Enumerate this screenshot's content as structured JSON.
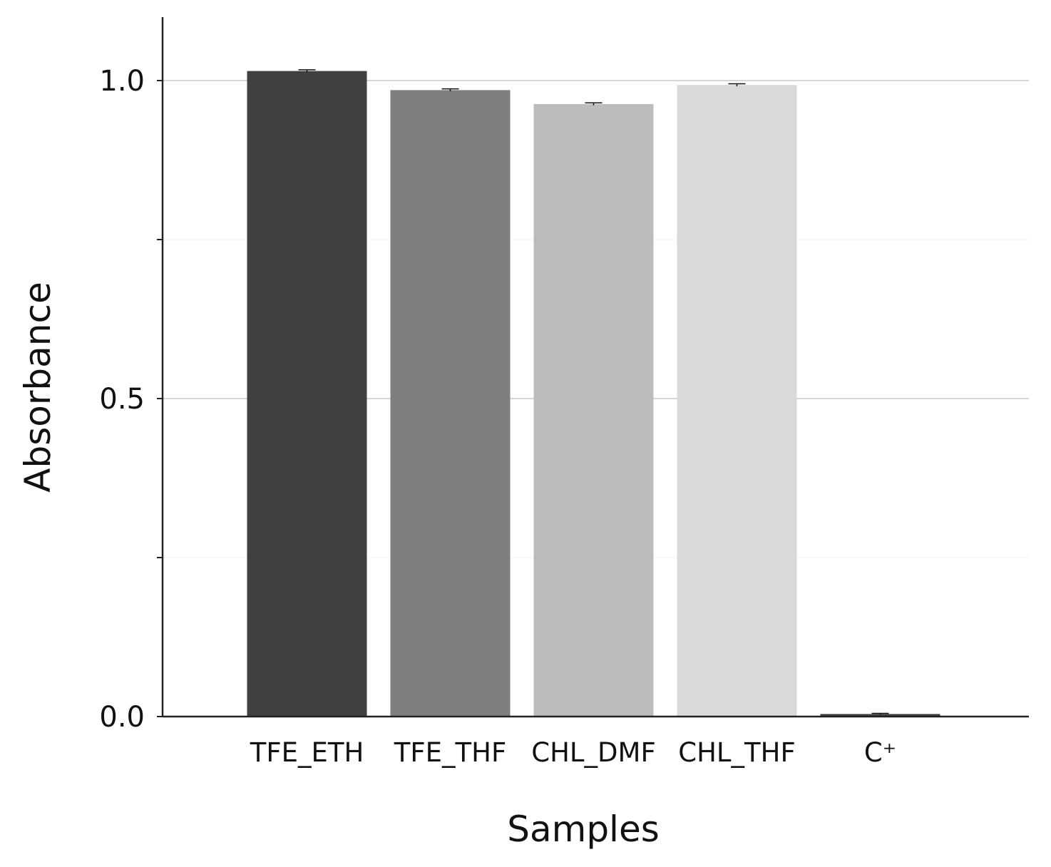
{
  "chart_data": {
    "type": "bar",
    "title": "",
    "xlabel": "Samples",
    "ylabel": "Absorbance",
    "categories": [
      "TFE_ETH",
      "TFE_THF",
      "CHL_DMF",
      "CHL_THF",
      "C⁺"
    ],
    "values": [
      1.015,
      0.985,
      0.963,
      0.993,
      0.004
    ],
    "errors": [
      0.002,
      0.002,
      0.002,
      0.002,
      0.001
    ],
    "colors": [
      "#404040",
      "#7f7f7f",
      "#bcbcbc",
      "#d9d9d9",
      "#404040"
    ],
    "ylim": [
      0,
      1.1
    ],
    "yticks": [
      0.0,
      0.5,
      1.0
    ],
    "ytick_labels": [
      "0.0",
      "0.5",
      "1.0"
    ],
    "minor_yticks": [
      0.25,
      0.75
    ],
    "grid": true
  }
}
